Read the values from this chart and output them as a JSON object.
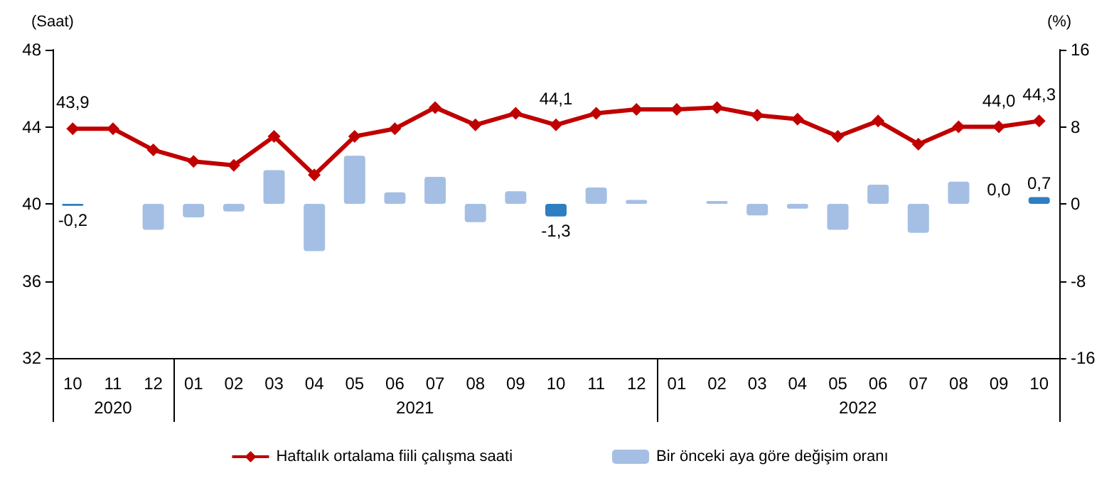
{
  "chart_data": {
    "type": "bar",
    "ylabel": "(Saat)",
    "y2label": "(%)",
    "categories": [
      "10",
      "11",
      "12",
      "01",
      "02",
      "03",
      "04",
      "05",
      "06",
      "07",
      "08",
      "09",
      "10",
      "11",
      "12",
      "01",
      "02",
      "03",
      "04",
      "05",
      "06",
      "07",
      "08",
      "09",
      "10"
    ],
    "annotations": [
      "2020",
      "2021",
      "2022"
    ],
    "series": [
      {
        "type": "line",
        "name": "Haftalık ortalama fiili çalışma saati",
        "color": "#c00000",
        "marker": "diamond",
        "values": [
          43.9,
          43.9,
          42.8,
          42.2,
          42.0,
          43.5,
          41.5,
          43.5,
          43.9,
          45.0,
          44.1,
          44.7,
          44.1,
          44.7,
          44.9,
          44.9,
          45.0,
          44.6,
          44.4,
          43.5,
          44.3,
          43.1,
          44.0,
          44.0,
          44.3
        ],
        "value_labels": [
          "43,9",
          null,
          null,
          null,
          null,
          null,
          null,
          null,
          null,
          null,
          null,
          null,
          "44,1",
          null,
          null,
          null,
          null,
          null,
          null,
          null,
          null,
          null,
          null,
          "44,0",
          "44,3"
        ]
      },
      {
        "axis": "y2",
        "name": "Bir önceki aya göre değişim oranı",
        "color": "#a4bfe3",
        "colors": [
          "#2e7ec1",
          "#a4bfe3",
          "#a4bfe3",
          "#a4bfe3",
          "#a4bfe3",
          "#a4bfe3",
          "#a4bfe3",
          "#a4bfe3",
          "#a4bfe3",
          "#a4bfe3",
          "#a4bfe3",
          "#a4bfe3",
          "#2e7ec1",
          "#a4bfe3",
          "#a4bfe3",
          "#a4bfe3",
          "#a4bfe3",
          "#a4bfe3",
          "#a4bfe3",
          "#a4bfe3",
          "#a4bfe3",
          "#a4bfe3",
          "#a4bfe3",
          "#2e7ec1",
          "#2e7ec1"
        ],
        "values": [
          -0.2,
          0,
          -2.7,
          -1.4,
          -0.8,
          3.5,
          -4.9,
          5.0,
          1.2,
          2.8,
          -1.9,
          1.3,
          -1.3,
          1.7,
          0.4,
          0,
          0.3,
          -1.2,
          -0.5,
          -2.7,
          2.0,
          -3.0,
          2.3,
          0.0,
          0.7
        ],
        "value_labels": [
          "-0,2",
          null,
          null,
          null,
          null,
          null,
          null,
          null,
          null,
          null,
          null,
          null,
          "-1,3",
          null,
          null,
          null,
          null,
          null,
          null,
          null,
          null,
          null,
          null,
          "0,0",
          "0,7"
        ]
      }
    ],
    "ylim": [
      32,
      48
    ],
    "yticks": [
      32,
      36,
      40,
      44,
      48
    ],
    "y2lim": [
      -16,
      16
    ],
    "y2ticks": [
      -16,
      -8,
      0,
      8,
      16
    ],
    "grid": false,
    "legend": "bottom"
  }
}
